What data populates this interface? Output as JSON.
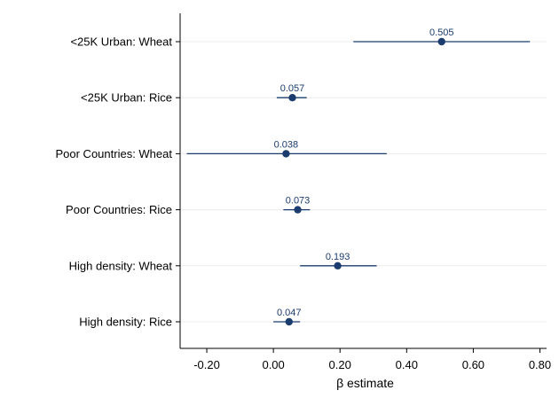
{
  "chart_data": {
    "type": "scatter",
    "subtype": "coefficient-plot",
    "title": "",
    "xlabel": "β estimate",
    "ylabel": "",
    "xlim": [
      -0.28,
      0.82
    ],
    "xticks": [
      -0.2,
      0.0,
      0.2,
      0.4,
      0.6,
      0.8
    ],
    "xtick_labels": [
      "-0.20",
      "0.00",
      "0.20",
      "0.40",
      "0.60",
      "0.80"
    ],
    "grid": "horizontal gridlines",
    "categories": [
      "<25K Urban: Wheat",
      "<25K Urban: Rice",
      "Poor Countries: Wheat",
      "Poor Countries: Rice",
      "High density: Wheat",
      "High density: Rice"
    ],
    "series": [
      {
        "estimates": [
          0.505,
          0.057,
          0.038,
          0.073,
          0.193,
          0.047
        ],
        "labels": [
          "0.505",
          "0.057",
          "0.038",
          "0.073",
          "0.193",
          "0.047"
        ],
        "ci_low": [
          0.24,
          0.01,
          -0.26,
          0.03,
          0.08,
          0.0
        ],
        "ci_high": [
          0.77,
          0.1,
          0.34,
          0.11,
          0.31,
          0.08
        ]
      }
    ],
    "colors": {
      "marker": "#1a3c6e",
      "ci": "#1a3c6e",
      "grid": "#ececec",
      "axis": "#000000"
    }
  }
}
